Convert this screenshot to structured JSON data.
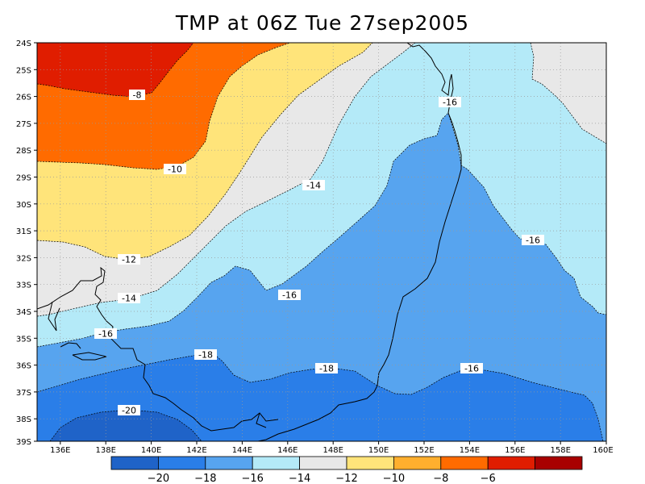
{
  "title": "TMP at 06Z Tue 27sep2005",
  "colors": {
    "c_m22": "#1f63c8",
    "c_m20": "#2a7ee8",
    "c_m18": "#57a4ef",
    "c_m16": "#b4eaf8",
    "c_m14": "#e8e8e8",
    "c_m12": "#ffe47a",
    "c_m10": "#ffaf2e",
    "c_m8": "#ff6b00",
    "c_m6": "#e01d00",
    "c_m4": "#a80000"
  },
  "lat_labels": [
    "24S",
    "25S",
    "26S",
    "27S",
    "28S",
    "29S",
    "30S",
    "31S",
    "32S",
    "33S",
    "34S",
    "35S",
    "36S",
    "37S",
    "38S",
    "39S"
  ],
  "lon_labels": [
    "136E",
    "138E",
    "140E",
    "142E",
    "144E",
    "146E",
    "148E",
    "150E",
    "152E",
    "154E",
    "156E",
    "158E",
    "160E"
  ],
  "contour_labels": [
    "-8",
    "-10",
    "-12",
    "-14",
    "-16",
    "-18",
    "-20",
    "-14",
    "-16",
    "-16",
    "-16",
    "-18",
    "-16"
  ],
  "colorbar": {
    "colors": [
      "#1f63c8",
      "#2a7ee8",
      "#57a4ef",
      "#b4eaf8",
      "#e8e8e8",
      "#ffe47a",
      "#ffaf2e",
      "#ff6b00",
      "#e01d00",
      "#a80000"
    ],
    "labels": [
      "−20",
      "−18",
      "−16",
      "−14",
      "−12",
      "−10",
      "−8",
      "−6"
    ]
  }
}
